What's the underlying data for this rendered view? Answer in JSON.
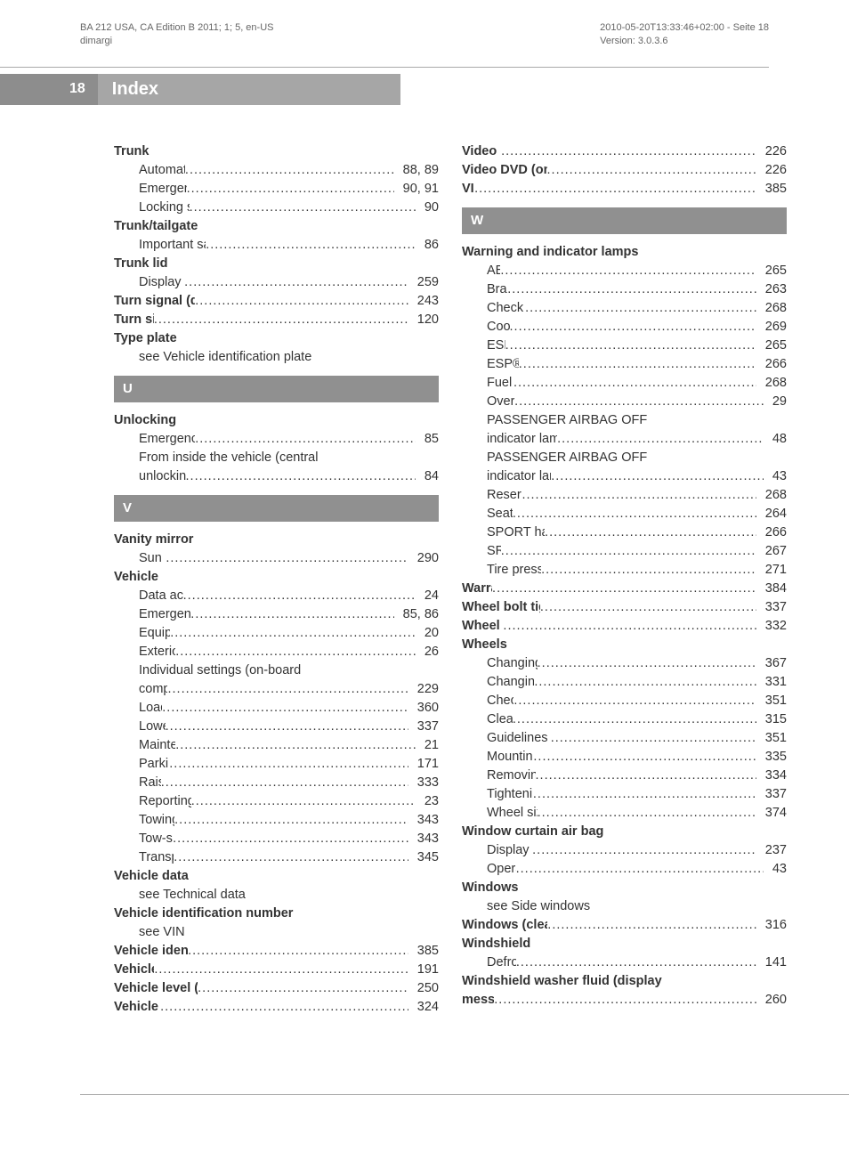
{
  "header": {
    "left_line1": "BA 212 USA, CA Edition B 2011; 1; 5, en-US",
    "left_line2": "dimargi",
    "right_line1": "2010-05-20T13:33:46+02:00 - Seite 18",
    "right_line2": "Version: 3.0.3.6"
  },
  "page_number": "18",
  "page_title": "Index",
  "columns": {
    "left": [
      {
        "type": "main",
        "label": "Trunk"
      },
      {
        "type": "sub",
        "label": "Automatic opening",
        "page": "88, 89"
      },
      {
        "type": "sub",
        "label": "Emergency release",
        "page": "90, 91"
      },
      {
        "type": "sub",
        "label": "Locking separately",
        "page": "90"
      },
      {
        "type": "main",
        "label": "Trunk/tailgate"
      },
      {
        "type": "sub",
        "label": "Important safety guidelines",
        "page": "86"
      },
      {
        "type": "main",
        "label": "Trunk lid"
      },
      {
        "type": "sub",
        "label": "Display message",
        "page": "259"
      },
      {
        "type": "main-page",
        "label": "Turn signal (display message)",
        "page": "243"
      },
      {
        "type": "main-page",
        "label": "Turn signals",
        "page": "120"
      },
      {
        "type": "main",
        "label": "Type plate"
      },
      {
        "type": "sub-noline",
        "label": "see Vehicle identification plate"
      },
      {
        "type": "letter",
        "label": "U"
      },
      {
        "type": "main",
        "label": "Unlocking"
      },
      {
        "type": "sub",
        "label": "Emergency unlocking",
        "page": "85"
      },
      {
        "type": "sub-noline",
        "label": "From inside the vehicle (central"
      },
      {
        "type": "sub",
        "label": "unlocking button)",
        "page": "84"
      },
      {
        "type": "letter",
        "label": "V"
      },
      {
        "type": "main",
        "label": "Vanity mirror"
      },
      {
        "type": "sub",
        "label": "Sun visor",
        "page": "290"
      },
      {
        "type": "main",
        "label": "Vehicle"
      },
      {
        "type": "sub",
        "label": "Data acquisition",
        "page": "24"
      },
      {
        "type": "sub",
        "label": "Emergency unlocking",
        "page": "85, 86"
      },
      {
        "type": "sub",
        "label": "Equipment",
        "page": "20"
      },
      {
        "type": "sub",
        "label": "Exterior view",
        "page": "26"
      },
      {
        "type": "sub-noline",
        "label": "Individual settings (on-board"
      },
      {
        "type": "sub",
        "label": "computer)",
        "page": "229"
      },
      {
        "type": "sub",
        "label": "Loading",
        "page": "360"
      },
      {
        "type": "sub",
        "label": "Lowering",
        "page": "337"
      },
      {
        "type": "sub",
        "label": "Maintenance",
        "page": "21"
      },
      {
        "type": "sub",
        "label": "Parking up",
        "page": "171"
      },
      {
        "type": "sub",
        "label": "Raising",
        "page": "333"
      },
      {
        "type": "sub",
        "label": "Reporting problems",
        "page": "23"
      },
      {
        "type": "sub",
        "label": "Towing away",
        "page": "343"
      },
      {
        "type": "sub",
        "label": "Tow-starting",
        "page": "343"
      },
      {
        "type": "sub",
        "label": "Transporting",
        "page": "345"
      },
      {
        "type": "main",
        "label": "Vehicle data"
      },
      {
        "type": "sub-noline",
        "label": "see Technical data"
      },
      {
        "type": "main",
        "label": "Vehicle identification number"
      },
      {
        "type": "sub-noline",
        "label": "see VIN"
      },
      {
        "type": "main-page",
        "label": "Vehicle identification plate",
        "page": "385"
      },
      {
        "type": "main-page",
        "label": "Vehicle level",
        "page": "191"
      },
      {
        "type": "main-page",
        "label": "Vehicle level (display message)",
        "page": "250"
      },
      {
        "type": "main-page",
        "label": "Vehicle tool kit",
        "page": "324"
      }
    ],
    "right": [
      {
        "type": "main-page",
        "label": "Video (DVD)",
        "page": "226"
      },
      {
        "type": "main-page",
        "label": "Video DVD (on-board computer)",
        "page": "226"
      },
      {
        "type": "main-page",
        "label": "VIN",
        "page": "385"
      },
      {
        "type": "letter",
        "label": "W"
      },
      {
        "type": "main",
        "label": "Warning and indicator lamps"
      },
      {
        "type": "sub",
        "label": "ABS",
        "page": "265"
      },
      {
        "type": "sub",
        "label": "Brakes",
        "page": "263"
      },
      {
        "type": "sub",
        "label": "Check Engine",
        "page": "268"
      },
      {
        "type": "sub",
        "label": "Coolant",
        "page": "269"
      },
      {
        "type": "sub",
        "label": "ESP®",
        "page": "265"
      },
      {
        "type": "sub",
        "label": "ESP® OFF",
        "page": "266"
      },
      {
        "type": "sub",
        "label": "Fuel tank",
        "page": "268"
      },
      {
        "type": "sub",
        "label": "Overview",
        "page": "29"
      },
      {
        "type": "sub-noline",
        "label": "PASSENGER AIRBAG OFF"
      },
      {
        "type": "sub",
        "label": "indicator lamp (only Canada)",
        "page": "48"
      },
      {
        "type": "sub-noline",
        "label": "PASSENGER AIRBAG OFF"
      },
      {
        "type": "sub",
        "label": "indicator lamp (only USA)",
        "page": "43"
      },
      {
        "type": "sub",
        "label": "Reserve fuel",
        "page": "268"
      },
      {
        "type": "sub",
        "label": "Seat belt",
        "page": "264"
      },
      {
        "type": "sub",
        "label": "SPORT handling mode",
        "page": "266"
      },
      {
        "type": "sub",
        "label": "SRS",
        "page": "267"
      },
      {
        "type": "sub",
        "label": "Tire pressure monitor",
        "page": "271"
      },
      {
        "type": "main-page",
        "label": "Warranty",
        "page": "384"
      },
      {
        "type": "main-page",
        "label": "Wheel bolt tightening torque",
        "page": "337"
      },
      {
        "type": "main-page",
        "label": "Wheel chock",
        "page": "332"
      },
      {
        "type": "main",
        "label": "Wheels"
      },
      {
        "type": "sub",
        "label": "Changing/replacing",
        "page": "367"
      },
      {
        "type": "sub",
        "label": "Changing a wheel",
        "page": "331"
      },
      {
        "type": "sub",
        "label": "Checking",
        "page": "351"
      },
      {
        "type": "sub",
        "label": "Cleaning",
        "page": "315"
      },
      {
        "type": "sub",
        "label": "Guidelines to be observed",
        "page": "351"
      },
      {
        "type": "sub",
        "label": "Mounting a wheel",
        "page": "335"
      },
      {
        "type": "sub",
        "label": "Removing a wheel",
        "page": "334"
      },
      {
        "type": "sub",
        "label": "Tightening torque",
        "page": "337"
      },
      {
        "type": "sub",
        "label": "Wheel size/tire size",
        "page": "374"
      },
      {
        "type": "main",
        "label": "Window curtain air bag"
      },
      {
        "type": "sub",
        "label": "Display message",
        "page": "237"
      },
      {
        "type": "sub",
        "label": "Operation",
        "page": "43"
      },
      {
        "type": "main",
        "label": "Windows"
      },
      {
        "type": "sub-noline",
        "label": "see Side windows"
      },
      {
        "type": "main-page",
        "label": "Windows (cleaning instructions)",
        "page": "316"
      },
      {
        "type": "main",
        "label": "Windshield"
      },
      {
        "type": "sub",
        "label": "Defrosting",
        "page": "141"
      },
      {
        "type": "main-noline",
        "label": "Windshield washer fluid (display"
      },
      {
        "type": "main-page",
        "label": "message)",
        "page": "260"
      }
    ]
  }
}
